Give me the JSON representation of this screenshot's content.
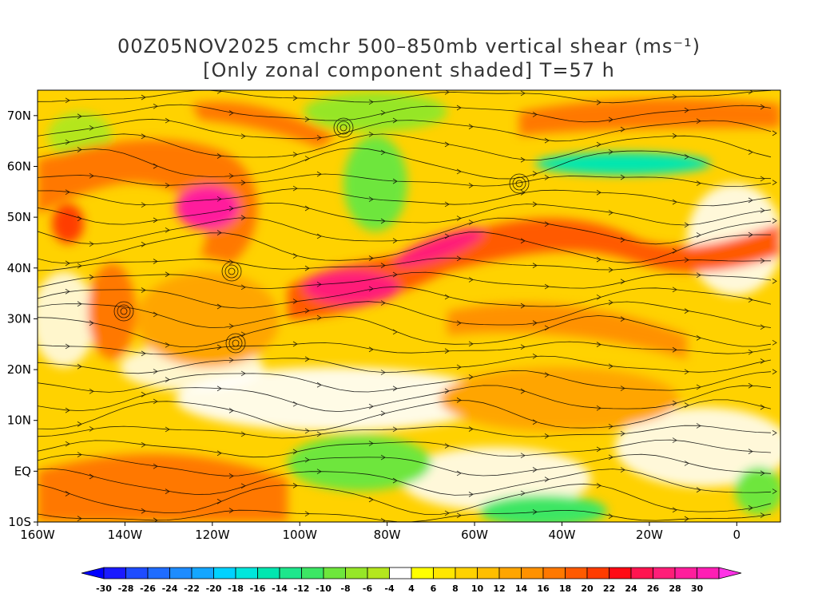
{
  "title": {
    "line1": "00Z05NOV2025 cmchr 500–850mb vertical shear (ms⁻¹)",
    "line2": "[Only zonal component shaded] T=57 h"
  },
  "map": {
    "lon_range": [
      -160,
      10
    ],
    "lat_range": [
      -10,
      75
    ],
    "lon_ticks": [
      {
        "value": -160,
        "label": "160W"
      },
      {
        "value": -140,
        "label": "140W"
      },
      {
        "value": -120,
        "label": "120W"
      },
      {
        "value": -100,
        "label": "100W"
      },
      {
        "value": -80,
        "label": "80W"
      },
      {
        "value": -60,
        "label": "60W"
      },
      {
        "value": -40,
        "label": "40W"
      },
      {
        "value": -20,
        "label": "20W"
      },
      {
        "value": 0,
        "label": "0"
      }
    ],
    "lat_ticks": [
      {
        "value": 70,
        "label": "70N"
      },
      {
        "value": 60,
        "label": "60N"
      },
      {
        "value": 50,
        "label": "50N"
      },
      {
        "value": 40,
        "label": "40N"
      },
      {
        "value": 30,
        "label": "30N"
      },
      {
        "value": 20,
        "label": "20N"
      },
      {
        "value": 10,
        "label": "10N"
      },
      {
        "value": 0,
        "label": "EQ"
      },
      {
        "value": -10,
        "label": "10S"
      }
    ]
  },
  "colorbar": {
    "labels": [
      "-30",
      "-28",
      "-26",
      "-24",
      "-22",
      "-20",
      "-18",
      "-16",
      "-14",
      "-12",
      "-10",
      "-8",
      "-6",
      "-4",
      "4",
      "6",
      "8",
      "10",
      "12",
      "14",
      "16",
      "18",
      "20",
      "22",
      "24",
      "26",
      "28",
      "30"
    ],
    "colors": [
      "#1a1aff",
      "#1e4cff",
      "#1f6cff",
      "#1e8cff",
      "#14a6ff",
      "#00d2ff",
      "#00e6dc",
      "#00e6b0",
      "#1ee68c",
      "#3ce664",
      "#6ee63c",
      "#96e628",
      "#b4e61e",
      "#ffffff",
      "#ffff00",
      "#ffe600",
      "#ffd200",
      "#ffbe00",
      "#ffa500",
      "#ff9100",
      "#ff7800",
      "#ff5a00",
      "#ff3c00",
      "#ff0a14",
      "#ff1450",
      "#ff1e78",
      "#ff1e9c",
      "#ff1eb4"
    ],
    "low_arrow_color": "#0000ff",
    "high_arrow_color": "#ff32e6"
  }
}
